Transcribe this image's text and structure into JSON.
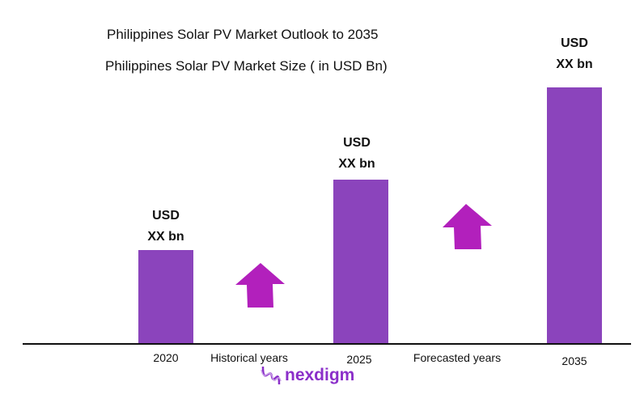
{
  "chart_data": {
    "type": "bar",
    "title": "Philippines Solar PV Market Outlook to 2035",
    "subtitle": "Philippines Solar PV  Market Size  ( in USD Bn)",
    "categories": [
      "2020",
      "2025",
      "2035"
    ],
    "data_labels": [
      [
        "USD",
        "XX bn"
      ],
      [
        "USD",
        "XX bn"
      ],
      [
        "USD",
        "XX bn"
      ]
    ],
    "annotations": [
      "Historical years",
      "Forecasted years"
    ],
    "grid": false,
    "colors": {
      "bar": "#8B44BC",
      "arrow": "#B220BC",
      "logo": "#8B2FC9"
    }
  },
  "logo": {
    "text": "nexdigm"
  }
}
